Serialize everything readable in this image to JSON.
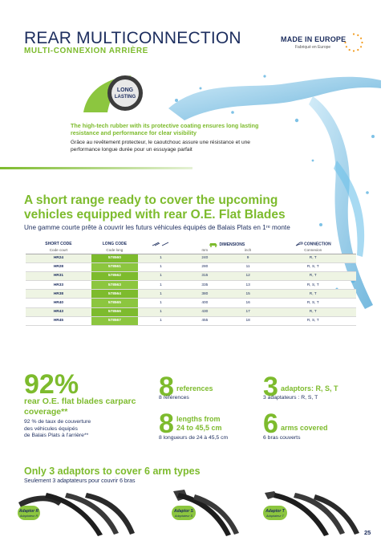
{
  "header": {
    "title": "REAR MULTICONNECTION",
    "subtitle": "MULTI-CONNEXION ARRIÈRE",
    "made_in": "MADE IN EUROPE",
    "made_in_sub": "Fabriqué en Europe"
  },
  "badge": {
    "line1": "LONG",
    "line2": "LASTING"
  },
  "long_lasting": {
    "en": "The high-tech rubber with its protective coating ensures long lasting resistance and performance for clear visibility",
    "fr": "Grâce au revêtement protecteur, le caoutchouc assure une résistance et une performance longue durée pour un essuyage parfait"
  },
  "section": {
    "heading": "A short range ready to cover the upcoming vehicles equipped with rear O.E. Flat Blades",
    "heading_fr": "Une gamme courte prête à couvrir les futurs véhicules équipés de Balais Plats en 1ʳᵉ monte"
  },
  "table": {
    "head": {
      "short_code": "SHORT CODE",
      "short_code_fr": "Code court",
      "long_code": "LONG CODE",
      "long_code_fr": "Code long",
      "dimensions": "DIMENSIONS",
      "mm": "mm",
      "inch": "inch",
      "connection": "CONNECTION",
      "connection_fr": "Connexion"
    },
    "rows": [
      {
        "short": "HR24",
        "long": "578560",
        "qty": "1",
        "mm": "240",
        "inch": "9",
        "conn": "R, T"
      },
      {
        "short": "HR28",
        "long": "578561",
        "qty": "1",
        "mm": "280",
        "inch": "11",
        "conn": "R, S, T"
      },
      {
        "short": "HR31",
        "long": "578562",
        "qty": "1",
        "mm": "315",
        "inch": "12",
        "conn": "R, T"
      },
      {
        "short": "HR33",
        "long": "578563",
        "qty": "1",
        "mm": "335",
        "inch": "13",
        "conn": "R, S, T"
      },
      {
        "short": "HR38",
        "long": "578564",
        "qty": "1",
        "mm": "380",
        "inch": "15",
        "conn": "R, T"
      },
      {
        "short": "HR40",
        "long": "578565",
        "qty": "1",
        "mm": "400",
        "inch": "16",
        "conn": "R, S, T"
      },
      {
        "short": "HR43",
        "long": "578566",
        "qty": "1",
        "mm": "430",
        "inch": "17",
        "conn": "R, T"
      },
      {
        "short": "HR45",
        "long": "578567",
        "qty": "1",
        "mm": "455",
        "inch": "18",
        "conn": "R, S, T"
      }
    ]
  },
  "stats": {
    "coverage": {
      "value": "92%",
      "label": "rear O.E. flat blades carparc coverage**",
      "fr": [
        "92 % de taux de couverture",
        "des véhicules équipés",
        "de Balais Plats à l'arrière**"
      ]
    },
    "references": {
      "value": "8",
      "label": "references",
      "fr": "8 références"
    },
    "lengths": {
      "value": "8",
      "label": "lengths from 24 to 45,5 cm",
      "label1": "lengths from",
      "label2": "24 to 45,5 cm",
      "fr": "8 longueurs de 24 à 45,5 cm"
    },
    "adaptors": {
      "value": "3",
      "label": "adaptors: R, S, T",
      "fr": "3 adaptateurs : R, S, T"
    },
    "arms": {
      "value": "6",
      "label": "arms covered",
      "fr": "6 bras couverts"
    }
  },
  "adaptors_section": {
    "heading": "Only 3 adaptors to cover 6 arm types",
    "heading_fr": "Seulement 3 adaptateurs pour couvrir 6 bras",
    "items": [
      {
        "name": "Adaptor R",
        "fr": "Adaptateur R"
      },
      {
        "name": "Adaptor S",
        "fr": "Adaptateur S"
      },
      {
        "name": "Adaptor T",
        "fr": "Adaptateur T"
      }
    ]
  },
  "page_number": "25",
  "colors": {
    "green": "#7dbb2d",
    "navy": "#1c2d5e",
    "orange": "#f29a1c"
  }
}
